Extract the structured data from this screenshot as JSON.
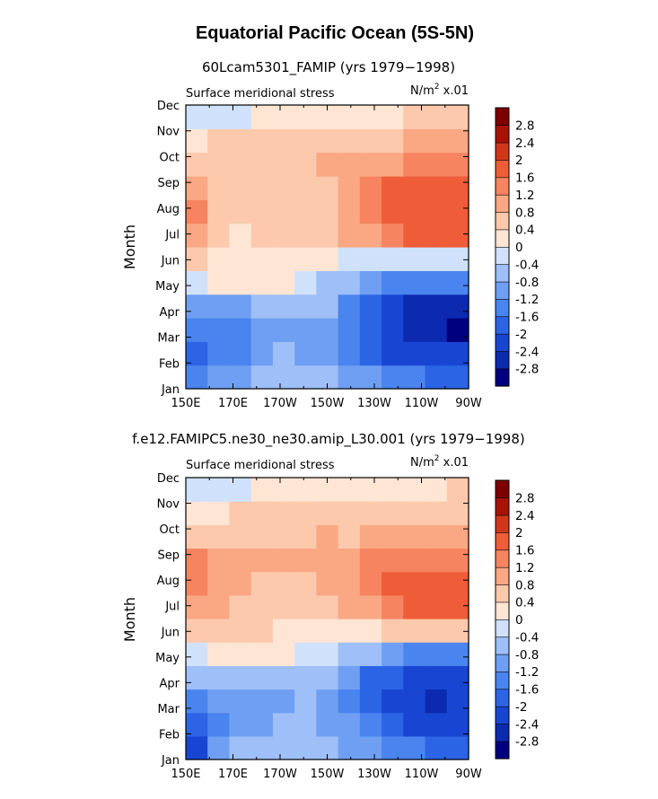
{
  "figure": {
    "title": "Equatorial Pacific Ocean (5S-5N)"
  },
  "colorbar": {
    "colors": [
      "#00007f",
      "#0c2ab0",
      "#1846d2",
      "#2c64e6",
      "#4a84ee",
      "#6f9ff2",
      "#9ebff7",
      "#d0e2fb",
      "#fee5d4",
      "#fcc9ac",
      "#f9a883",
      "#f68460",
      "#ee5d38",
      "#d2361a",
      "#a81306",
      "#7d0000"
    ],
    "labels": [
      "-2.8",
      "-2.4",
      "-2",
      "-1.6",
      "-1.2",
      "-0.8",
      "-0.4",
      "0",
      "0.4",
      "0.8",
      "1.2",
      "1.6",
      "2",
      "2.4",
      "2.8"
    ]
  },
  "chart_data": [
    {
      "type": "heatmap",
      "title": "60Lcam5301_FAMIP (yrs 1979−1998)",
      "left_label": "Surface meridional stress",
      "units": "N/m",
      "units_exp": "2",
      "units_scale": "x.01",
      "ylabel": "Month",
      "x_ticks": [
        "150E",
        "170E",
        "170W",
        "150W",
        "130W",
        "110W",
        "90W"
      ],
      "y_ticks": [
        "Jan",
        "Feb",
        "Mar",
        "Apr",
        "May",
        "Jun",
        "Jul",
        "Aug",
        "Sep",
        "Oct",
        "Nov",
        "Dec"
      ],
      "x_lon": [
        150,
        160,
        170,
        180,
        190,
        200,
        210,
        220,
        230,
        240,
        250,
        260,
        270
      ],
      "values": [
        [
          -1.3,
          -1.1,
          -0.9,
          -0.8,
          -0.7,
          -0.7,
          -0.8,
          -0.9,
          -1.0,
          -1.3,
          -1.6,
          -1.7,
          -1.8
        ],
        [
          -1.8,
          -1.6,
          -1.5,
          -1.0,
          -0.8,
          -0.9,
          -1.0,
          -1.3,
          -1.8,
          -2.1,
          -2.3,
          -2.3,
          -2.2
        ],
        [
          -1.6,
          -1.5,
          -1.3,
          -1.2,
          -1.0,
          -1.0,
          -1.1,
          -1.3,
          -1.9,
          -2.2,
          -2.5,
          -2.8,
          -2.9
        ],
        [
          -1.0,
          -0.9,
          -0.9,
          -0.7,
          -0.7,
          -0.7,
          -0.8,
          -1.3,
          -1.8,
          -2.2,
          -2.5,
          -2.6,
          -2.5
        ],
        [
          -0.4,
          0.2,
          0.2,
          0.1,
          0.0,
          -0.3,
          -0.6,
          -0.8,
          -1.0,
          -1.3,
          -1.6,
          -1.6,
          -1.5
        ],
        [
          0.5,
          0.3,
          0.2,
          0.2,
          0.2,
          0.2,
          0.1,
          -0.2,
          -0.4,
          -0.4,
          -0.4,
          -0.4,
          -0.4
        ],
        [
          1.0,
          0.6,
          0.3,
          0.4,
          0.4,
          0.5,
          0.6,
          0.8,
          1.0,
          1.3,
          1.6,
          1.8,
          1.7
        ],
        [
          1.3,
          0.7,
          0.6,
          0.6,
          0.6,
          0.7,
          0.7,
          0.8,
          1.2,
          1.6,
          1.8,
          1.8,
          1.7
        ],
        [
          0.9,
          0.7,
          0.6,
          0.6,
          0.6,
          0.7,
          0.7,
          0.8,
          1.2,
          1.6,
          1.7,
          1.7,
          1.6
        ],
        [
          0.5,
          0.5,
          0.6,
          0.7,
          0.7,
          0.7,
          0.8,
          0.8,
          1.0,
          1.1,
          1.2,
          1.2,
          1.2
        ],
        [
          0.3,
          0.4,
          0.4,
          0.4,
          0.5,
          0.5,
          0.5,
          0.6,
          0.6,
          0.7,
          0.8,
          0.8,
          0.8
        ],
        [
          -0.4,
          -0.2,
          -0.1,
          0.0,
          0.1,
          0.1,
          0.2,
          0.3,
          0.3,
          0.3,
          0.4,
          0.4,
          0.4
        ]
      ]
    },
    {
      "type": "heatmap",
      "title": "f.e12.FAMIPC5.ne30_ne30.amip_L30.001 (yrs 1979−1998)",
      "left_label": "Surface meridional stress",
      "units": "N/m",
      "units_exp": "2",
      "units_scale": "x.01",
      "ylabel": "Month",
      "x_ticks": [
        "150E",
        "170E",
        "170W",
        "150W",
        "130W",
        "110W",
        "90W"
      ],
      "y_ticks": [
        "Jan",
        "Feb",
        "Mar",
        "Apr",
        "May",
        "Jun",
        "Jul",
        "Aug",
        "Sep",
        "Oct",
        "Nov",
        "Dec"
      ],
      "x_lon": [
        150,
        160,
        170,
        180,
        190,
        200,
        210,
        220,
        230,
        240,
        250,
        260,
        270
      ],
      "values": [
        [
          -2.1,
          -1.0,
          -0.7,
          -0.5,
          -0.5,
          -0.6,
          -0.7,
          -0.9,
          -1.1,
          -1.4,
          -1.6,
          -1.7,
          -1.7
        ],
        [
          -2.0,
          -1.3,
          -1.0,
          -0.9,
          -0.7,
          -0.7,
          -0.9,
          -1.2,
          -1.6,
          -2.0,
          -2.2,
          -2.2,
          -2.2
        ],
        [
          -1.4,
          -1.2,
          -1.0,
          -0.9,
          -0.9,
          -0.8,
          -1.0,
          -1.3,
          -1.8,
          -2.1,
          -2.3,
          -2.5,
          -2.4
        ],
        [
          -0.6,
          -0.6,
          -0.7,
          -0.7,
          -0.6,
          -0.7,
          -0.8,
          -1.2,
          -1.7,
          -2.0,
          -2.2,
          -2.3,
          -2.1
        ],
        [
          -0.2,
          0.1,
          0.2,
          0.1,
          0.0,
          -0.2,
          -0.4,
          -0.6,
          -0.8,
          -1.0,
          -1.3,
          -1.4,
          -1.3
        ],
        [
          0.4,
          0.5,
          0.6,
          0.5,
          0.3,
          0.2,
          0.2,
          0.2,
          0.3,
          0.4,
          0.5,
          0.6,
          0.6
        ],
        [
          0.9,
          0.8,
          0.7,
          0.5,
          0.6,
          0.6,
          0.7,
          0.9,
          1.1,
          1.4,
          1.6,
          1.7,
          1.6
        ],
        [
          1.5,
          0.8,
          0.8,
          0.7,
          0.7,
          0.7,
          0.8,
          1.0,
          1.3,
          1.6,
          1.7,
          1.7,
          1.6
        ],
        [
          1.3,
          0.8,
          0.8,
          0.8,
          0.8,
          0.9,
          1.0,
          1.0,
          1.2,
          1.4,
          1.5,
          1.5,
          1.3
        ],
        [
          0.6,
          0.6,
          0.6,
          0.7,
          0.7,
          0.7,
          0.8,
          0.7,
          0.8,
          0.9,
          1.0,
          1.0,
          1.0
        ],
        [
          0.3,
          0.3,
          0.4,
          0.4,
          0.4,
          0.4,
          0.4,
          0.4,
          0.5,
          0.5,
          0.6,
          0.6,
          0.6
        ],
        [
          -0.4,
          -0.2,
          -0.1,
          0.0,
          0.0,
          0.1,
          0.2,
          0.2,
          0.2,
          0.3,
          0.3,
          0.3,
          0.4
        ]
      ]
    }
  ]
}
